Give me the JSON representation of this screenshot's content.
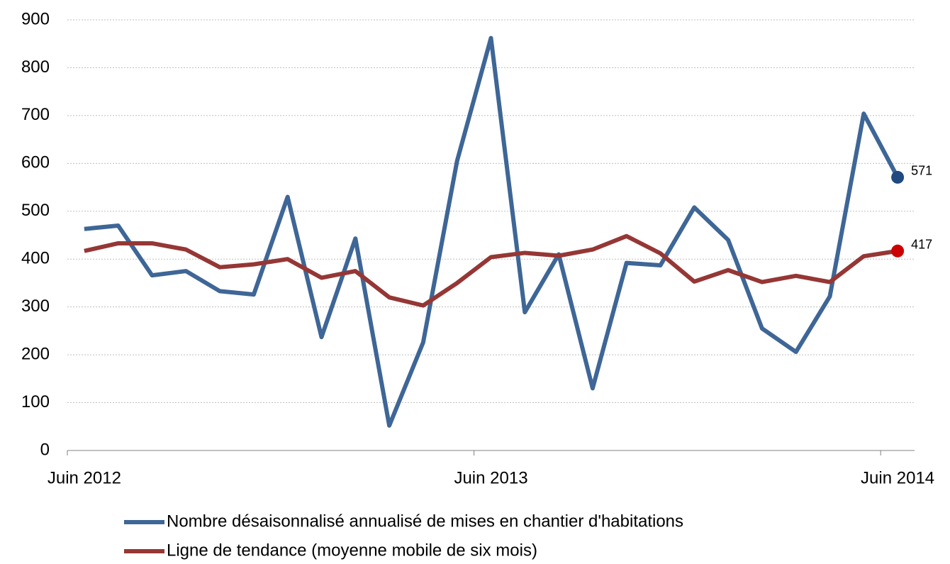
{
  "chart_data": {
    "type": "line",
    "categories": [
      "Juin 2012",
      null,
      null,
      null,
      null,
      null,
      null,
      null,
      null,
      null,
      null,
      null,
      "Juin 2013",
      null,
      null,
      null,
      null,
      null,
      null,
      null,
      null,
      null,
      null,
      null,
      "Juin 2014"
    ],
    "series": [
      {
        "name": "Nombre désaisonnalisé annualisé de mises en chantier d'habitations",
        "color": "#3e6696",
        "marker_color": "#1f4a80",
        "values": [
          463,
          470,
          366,
          375,
          333,
          326,
          530,
          237,
          443,
          52,
          226,
          605,
          862,
          289,
          410,
          130,
          392,
          387,
          508,
          440,
          255,
          206,
          322,
          704,
          571
        ]
      },
      {
        "name": "Ligne de tendance (moyenne mobile de six mois)",
        "color": "#953735",
        "marker_color": "#cc0000",
        "values": [
          417,
          433,
          433,
          420,
          383,
          389,
          400,
          361,
          375,
          320,
          303,
          350,
          404,
          413,
          407,
          420,
          448,
          412,
          353,
          377,
          352,
          365,
          352,
          406,
          417
        ]
      }
    ],
    "ylim": [
      0,
      900
    ],
    "yticks": [
      0,
      100,
      200,
      300,
      400,
      500,
      600,
      700,
      800,
      900
    ],
    "grid": true
  }
}
